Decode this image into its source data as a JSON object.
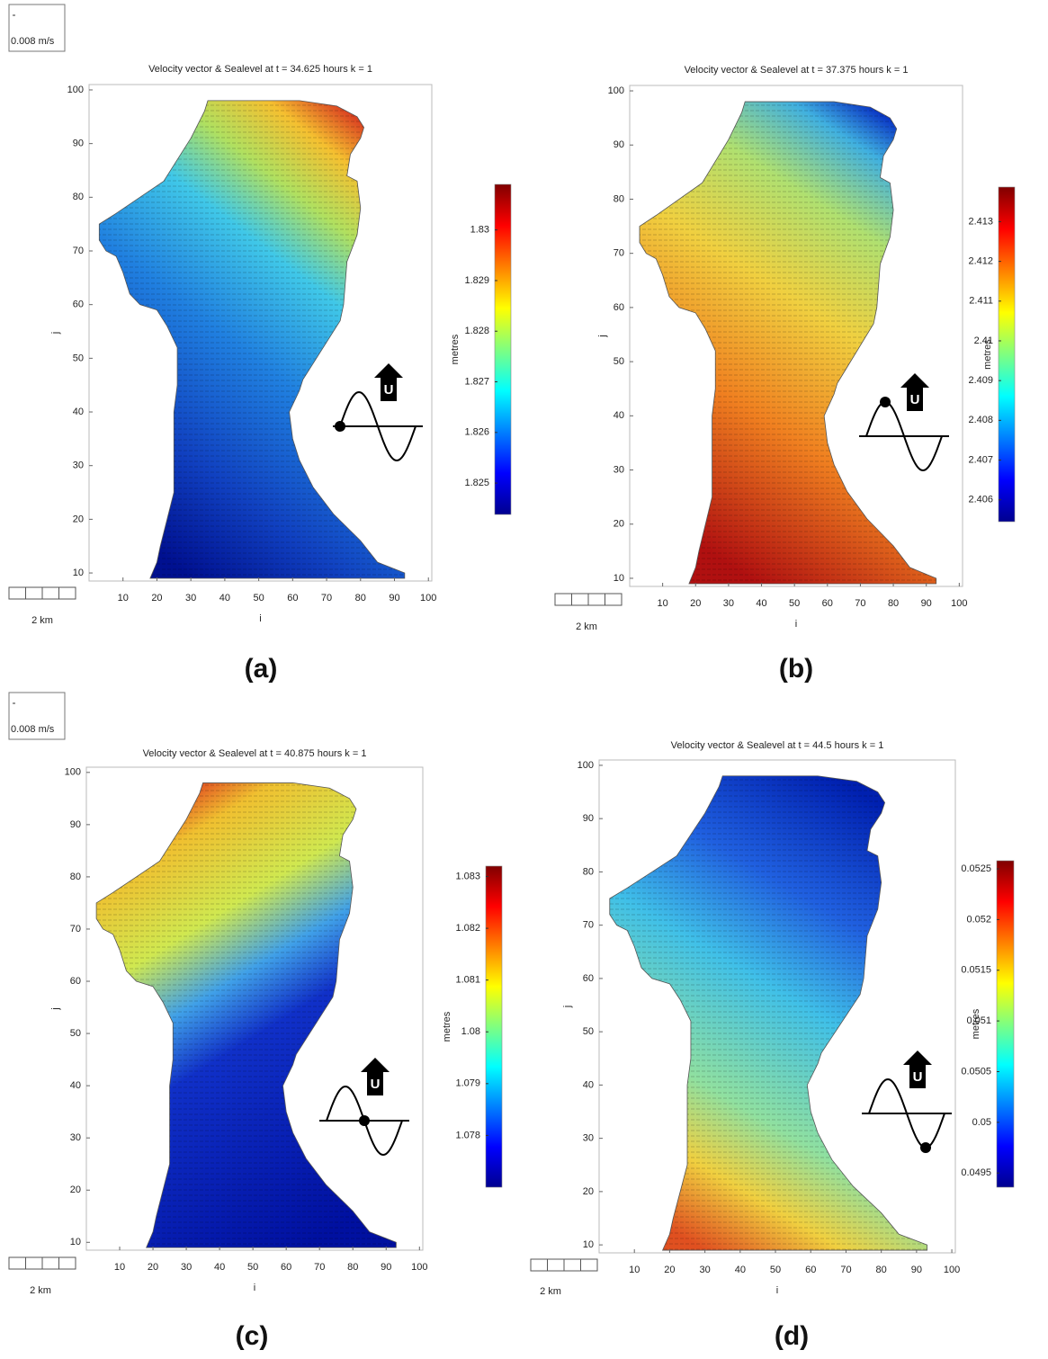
{
  "chart_data": [
    {
      "type": "heatmap",
      "title": "Velocity vector & Sealevel at t = 34.625 hours  k = 1",
      "xlabel": "i",
      "ylabel": "j",
      "xlim": [
        0,
        101
      ],
      "ylim": [
        8.5,
        101
      ],
      "xticks": [
        10,
        20,
        30,
        40,
        50,
        60,
        70,
        80,
        90,
        100
      ],
      "yticks": [
        10,
        20,
        30,
        40,
        50,
        60,
        70,
        80,
        90,
        100
      ],
      "colorbar": {
        "label": "metres",
        "lim": [
          1.82438,
          1.8309
        ],
        "ticks": [
          1.825,
          1.826,
          1.827,
          1.828,
          1.829,
          1.83
        ]
      },
      "scale_bar": "2 km",
      "vector_scale": "0.008 m/s",
      "icon_label": "U",
      "panel_label": "(a)"
    },
    {
      "type": "heatmap",
      "title": "Velocity vector & Sealevel at t = 37.375 hours  k = 1",
      "xlabel": "i",
      "ylabel": "j",
      "xlim": [
        0,
        101
      ],
      "ylim": [
        8.5,
        101
      ],
      "xticks": [
        10,
        20,
        30,
        40,
        50,
        60,
        70,
        80,
        90,
        100
      ],
      "yticks": [
        10,
        20,
        30,
        40,
        50,
        60,
        70,
        80,
        90,
        100
      ],
      "colorbar": {
        "label": "metres",
        "lim": [
          2.40545,
          2.41387
        ],
        "ticks": [
          2.406,
          2.407,
          2.408,
          2.409,
          2.41,
          2.411,
          2.412,
          2.413
        ]
      },
      "scale_bar": "2 km",
      "icon_label": "U",
      "panel_label": "(b)"
    },
    {
      "type": "heatmap",
      "title": "Velocity vector & Sealevel at t = 40.875 hours  k = 1",
      "xlabel": "i",
      "ylabel": "j",
      "xlim": [
        0,
        101
      ],
      "ylim": [
        8.5,
        101
      ],
      "xticks": [
        10,
        20,
        30,
        40,
        50,
        60,
        70,
        80,
        90,
        100
      ],
      "yticks": [
        10,
        20,
        30,
        40,
        50,
        60,
        70,
        80,
        90,
        100
      ],
      "colorbar": {
        "label": "metres",
        "lim": [
          1.077,
          1.0832
        ],
        "ticks": [
          1.078,
          1.079,
          1.08,
          1.081,
          1.082,
          1.083
        ]
      },
      "scale_bar": "2 km",
      "vector_scale": "0.008 m/s",
      "icon_label": "U",
      "panel_label": "(c)"
    },
    {
      "type": "heatmap",
      "title": "Velocity vector & Sealevel at t = 44.5 hours  k = 1",
      "xlabel": "i",
      "ylabel": "j",
      "xlim": [
        0,
        101
      ],
      "ylim": [
        8.5,
        101
      ],
      "xticks": [
        10,
        20,
        30,
        40,
        50,
        60,
        70,
        80,
        90,
        100
      ],
      "yticks": [
        10,
        20,
        30,
        40,
        50,
        60,
        70,
        80,
        90,
        100
      ],
      "colorbar": {
        "label": "metres",
        "lim": [
          0.04936,
          0.05258
        ],
        "ticks": [
          0.0495,
          0.05,
          0.0505,
          0.051,
          0.0515,
          0.052,
          0.0525
        ]
      },
      "scale_bar": "2 km",
      "icon_label": "U",
      "panel_label": "(d)"
    }
  ]
}
